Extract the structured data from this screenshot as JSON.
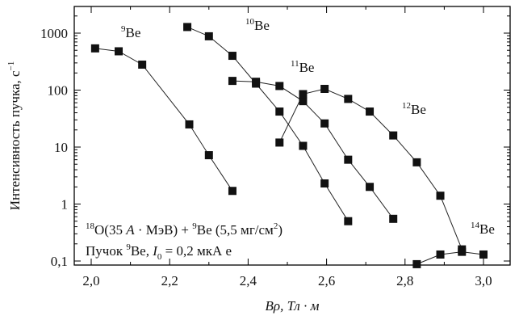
{
  "chart_data": {
    "type": "scatter",
    "xlabel": "Bρ, Тл · м",
    "ylabel": "Интенсивность пучка, с",
    "ylabel_sup": "−1",
    "xlim": [
      1.9,
      3.1
    ],
    "ylim": [
      0.08,
      3000
    ],
    "y_scale": "log",
    "x_ticks": [
      2.0,
      2.2,
      2.4,
      2.6,
      2.8,
      3.0
    ],
    "x_tick_labels": [
      "2,0",
      "2,2",
      "2,4",
      "2,6",
      "2,8",
      "3,0"
    ],
    "y_ticks": [
      0.1,
      1,
      10,
      100,
      1000
    ],
    "y_tick_labels": [
      "0,1",
      "1",
      "10",
      "100",
      "1000"
    ],
    "grid": false,
    "series": [
      {
        "name": "Be",
        "name_sup": "9",
        "x": [
          2.01,
          2.07,
          2.13,
          2.25,
          2.3,
          2.36
        ],
        "y": [
          540,
          480,
          280,
          25,
          7.2,
          1.7
        ]
      },
      {
        "name": "Be",
        "name_sup": "10",
        "x": [
          2.245,
          2.3,
          2.36,
          2.42,
          2.48,
          2.54,
          2.595,
          2.655
        ],
        "y": [
          1280,
          880,
          400,
          130,
          42,
          10.5,
          2.3,
          0.5
        ]
      },
      {
        "name": "Be",
        "name_sup": "11",
        "x": [
          2.36,
          2.42,
          2.48,
          2.54,
          2.595,
          2.655,
          2.71,
          2.77
        ],
        "y": [
          145,
          140,
          118,
          64,
          26,
          6,
          2,
          0.55
        ]
      },
      {
        "name": "Be",
        "name_sup": "12",
        "x": [
          2.48,
          2.54,
          2.595,
          2.655,
          2.71,
          2.77,
          2.83,
          2.89,
          2.945
        ],
        "y": [
          12,
          85,
          105,
          70,
          42,
          16,
          5.4,
          1.4,
          0.16
        ]
      },
      {
        "name": "Be",
        "name_sup": "14",
        "x": [
          2.83,
          2.89,
          2.945,
          3.0
        ],
        "y": [
          0.088,
          0.13,
          0.145,
          0.13
        ]
      }
    ],
    "annotation_line1": {
      "p1_sup": "18",
      "p1": "O(35 ",
      "p2_italic": "A",
      "p3": " · МэВ) + ",
      "p4_sup": "9",
      "p5": "Be (5,5 мг/см",
      "p6_sup": "2",
      "p7": ")"
    },
    "annotation_line2": {
      "p1": "Пучок ",
      "p2_sup": "9",
      "p3": "Be,  ",
      "p4_italic": "I",
      "p5_sub": "0",
      "p6": " = 0,2 мкА е"
    }
  }
}
